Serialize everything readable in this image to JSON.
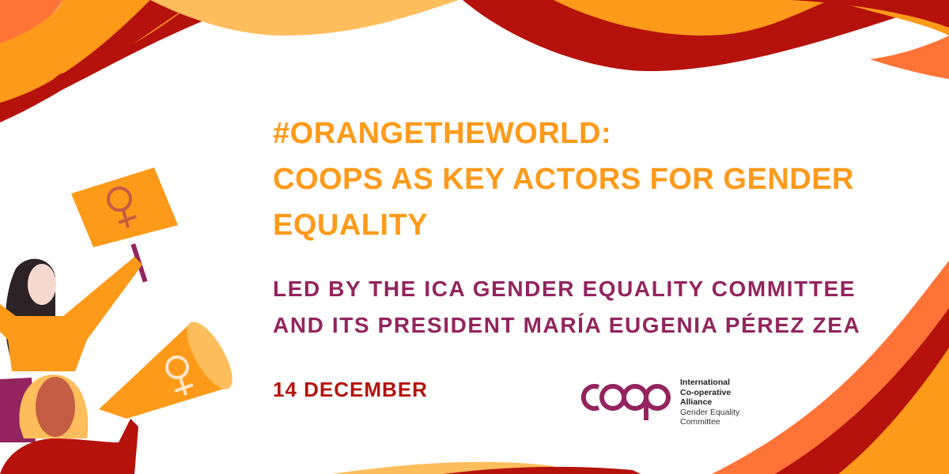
{
  "headline": {
    "lines": [
      "#OrangeTheWorld:",
      "Coops as key actors for gender",
      "equality"
    ]
  },
  "subheadline": {
    "lines": [
      "Led by the ICA Gender Equality Committee",
      "and its President María Eugenia Pérez Zea"
    ]
  },
  "date": "14 December",
  "logo": {
    "wordmark": "coop",
    "org_lines": [
      "International",
      "Co-operative",
      "Alliance"
    ],
    "committee_lines": [
      "Gender Equality",
      "Committee"
    ]
  },
  "illustration": {
    "icons": [
      "female-symbol-icon",
      "megaphone-icon",
      "protest-sign-icon"
    ]
  },
  "colors": {
    "orange": "#fd9a1a",
    "light_orange": "#ffbd5c",
    "coral": "#ff7337",
    "dark_red": "#b5120b",
    "purple": "#93245f"
  }
}
